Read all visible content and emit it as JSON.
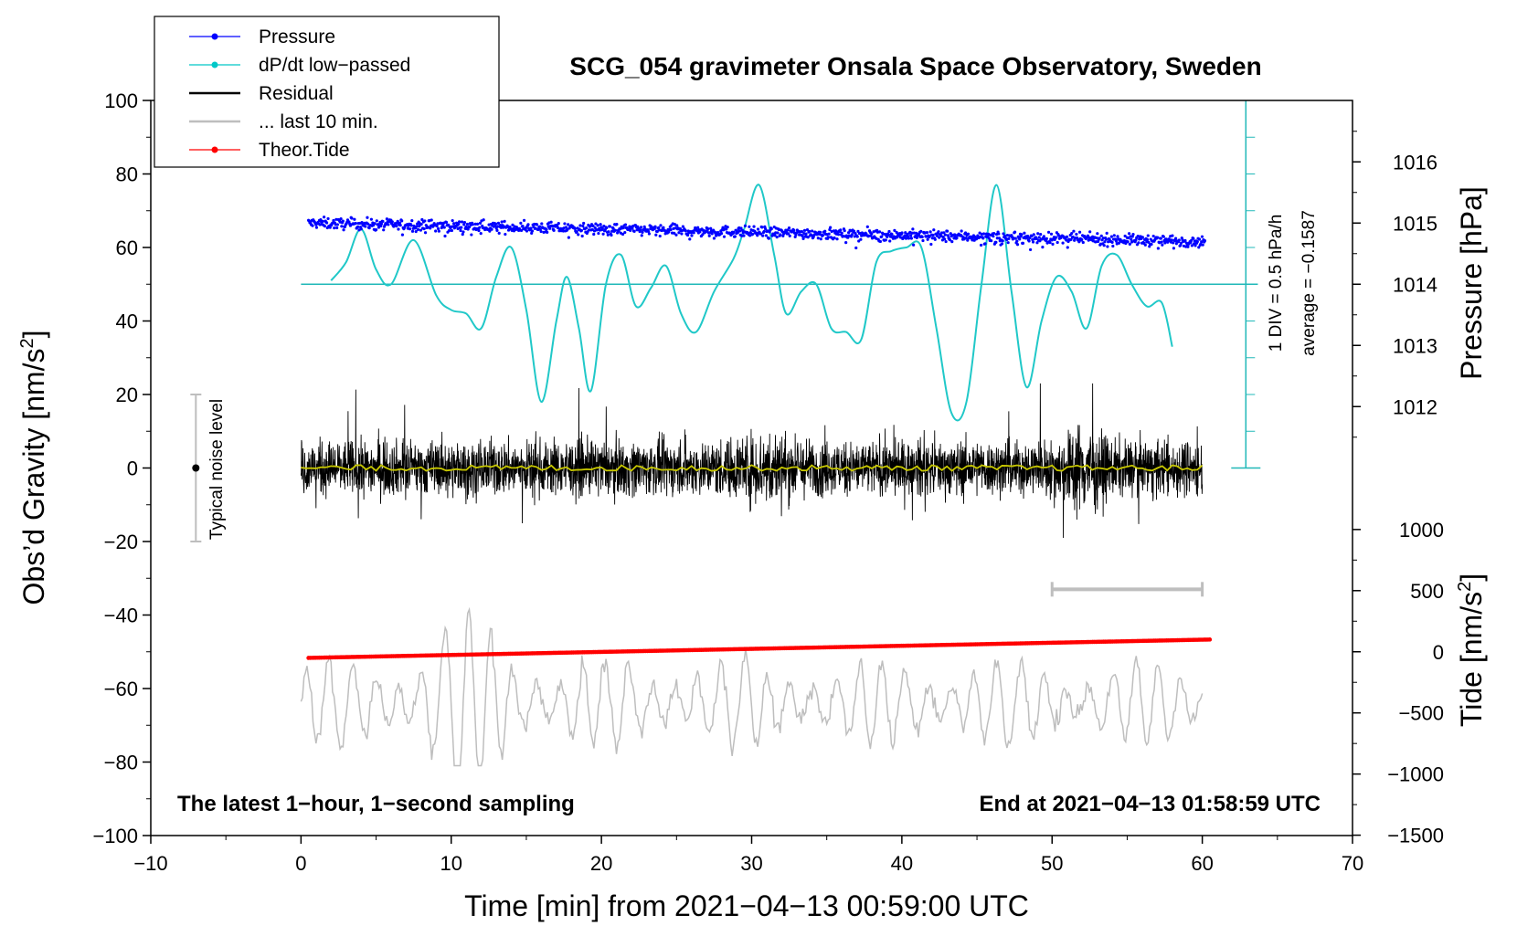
{
  "chart_data": {
    "type": "line",
    "title": "SCG_054 gravimeter Onsala Space Observatory, Sweden",
    "xlabel": "Time [min] from 2021−04−13 00:59:00 UTC",
    "ylabel_left": "Obs’d Gravity [nm/s²]",
    "ylabel_right_top": "Pressure [hPa]",
    "ylabel_right_bottom": "Tide [nm/s²]",
    "xlim": [
      -10,
      70
    ],
    "ylim_left": [
      -100,
      100
    ],
    "x_ticks": [
      "−10",
      "0",
      "10",
      "20",
      "30",
      "40",
      "50",
      "60",
      "70"
    ],
    "y_ticks_left": [
      "100",
      "80",
      "60",
      "40",
      "20",
      "0",
      "−20",
      "−40",
      "−60",
      "−80",
      "−100"
    ],
    "pressure_ticks": [
      "1016",
      "1015",
      "1014",
      "1013",
      "1012"
    ],
    "tide_ticks": [
      "1000",
      "500",
      "0",
      "−500",
      "−1000",
      "−1500"
    ],
    "footnote_left": "The latest 1−hour, 1−second sampling",
    "footnote_right": "End at 2021−04−13 01:58:59 UTC",
    "dpdt_scale_label": "1 DIV = 0.5 hPa/h",
    "dpdt_average_label": "average = −0.1587",
    "noise_label": "Typical noise level",
    "noise_bar": {
      "x": -7,
      "y_range": [
        -20,
        20
      ]
    },
    "last10_bar": {
      "x_range": [
        50,
        60
      ],
      "y": -33
    },
    "legend": [
      {
        "label": "Pressure",
        "color": "#0000ff",
        "marker": true
      },
      {
        "label": "dP/dt low−passed",
        "color": "#00c8c8",
        "marker": true
      },
      {
        "label": "Residual",
        "color": "#000000",
        "marker": false
      },
      {
        "label": "... last 10 min.",
        "color": "#bebebe",
        "marker": false
      },
      {
        "label": "Theor.Tide",
        "color": "#ff0000",
        "marker": true
      }
    ],
    "series": [
      {
        "name": "Pressure",
        "axis": "pressure_hPa",
        "approx": "scatter band from 1015.0 hPa at t=0.5 falling to 1014.7 hPa at t=60",
        "start": 1015.0,
        "end": 1014.7
      },
      {
        "name": "dP/dt low-passed",
        "axis": "gravity_equivalent",
        "x": [
          2,
          3,
          4,
          5,
          6,
          7.5,
          9,
          10,
          11,
          12,
          13,
          14,
          15,
          16,
          17,
          17.7,
          18.5,
          19.3,
          20.3,
          21.3,
          22.3,
          23.3,
          24.3,
          25.3,
          26.3,
          27.5,
          28.8,
          29.5,
          30.5,
          31.5,
          32.3,
          33.3,
          34.3,
          35.3,
          36.3,
          37.3,
          38.3,
          39.3,
          40.3,
          41.3,
          42.3,
          43.3,
          44.3,
          45.3,
          46.3,
          47.3,
          48.3,
          49.3,
          50.3,
          51.3,
          52.3,
          53.3,
          54.3,
          55.3,
          56.3,
          57.3,
          58
        ],
        "y": [
          51,
          56,
          65,
          54,
          50,
          62,
          47,
          43,
          42,
          38,
          52,
          60,
          43,
          18,
          40,
          52,
          38,
          21,
          50,
          58,
          44,
          49,
          55,
          42,
          37,
          48,
          57,
          65,
          77,
          58,
          42,
          48,
          50,
          38,
          37,
          35,
          56,
          59,
          60,
          60,
          38,
          15,
          18,
          50,
          77,
          48,
          22,
          40,
          52,
          48,
          38,
          55,
          58,
          50,
          44,
          45,
          33
        ]
      },
      {
        "name": "Residual",
        "axis": "gravity",
        "approx": "1-s noise around 0 with amplitude about ±10 nm/s², spikes to ±20",
        "range": [
          -20,
          23
        ]
      },
      {
        "name": "Theor.Tide",
        "axis": "tide_nm_s2",
        "x": [
          0.5,
          60.5
        ],
        "y": [
          -50,
          100
        ]
      },
      {
        "name": "... last 10 min.",
        "axis": "gravity",
        "approx": "oscillation around −64 with amplitude up to ±25",
        "range": [
          -81,
          -38
        ]
      }
    ],
    "dpdt_zero_line": 50
  }
}
